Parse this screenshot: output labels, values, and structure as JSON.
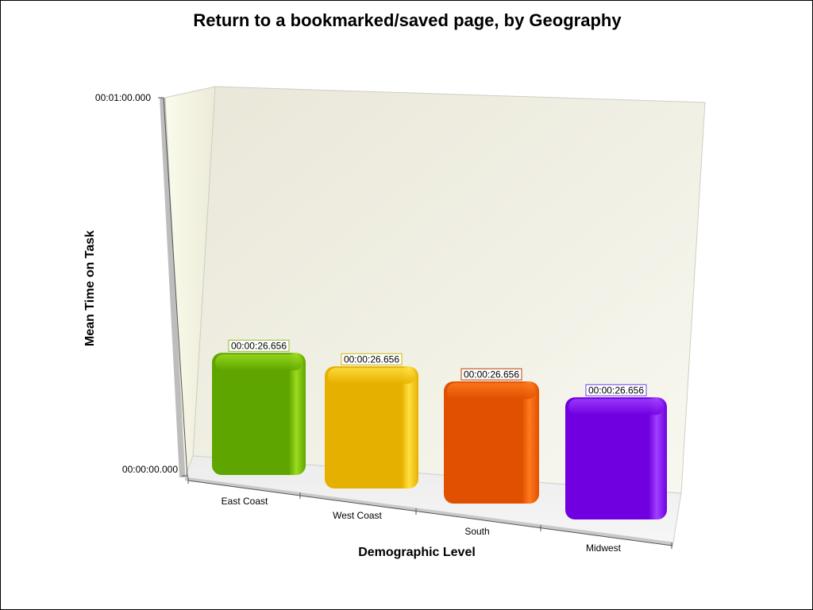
{
  "chart_data": {
    "type": "bar",
    "title": "Return to a bookmarked/saved page, by Geography",
    "xlabel": "Demographic Level",
    "ylabel": "Mean Time on Task",
    "categories": [
      "East Coast",
      "West Coast",
      "South",
      "Midwest"
    ],
    "values": [
      26.656,
      26.656,
      26.656,
      26.656
    ],
    "data_labels": [
      "00:00:26.656",
      "00:00:26.656",
      "00:00:26.656",
      "00:00:26.656"
    ],
    "y_ticks": [
      "00:00:00.000",
      "00:01:00.000"
    ],
    "ylim": [
      0,
      60
    ],
    "grid": false,
    "colors": [
      "#5fa500",
      "#e6b000",
      "#e05000",
      "#7000e0"
    ],
    "highlight_colors": [
      "#9bdc1e",
      "#ffe040",
      "#ff7a1e",
      "#a040ff"
    ],
    "label_border_colors": [
      "#8fbf2f",
      "#d4b800",
      "#c04000",
      "#6a3cff"
    ]
  }
}
